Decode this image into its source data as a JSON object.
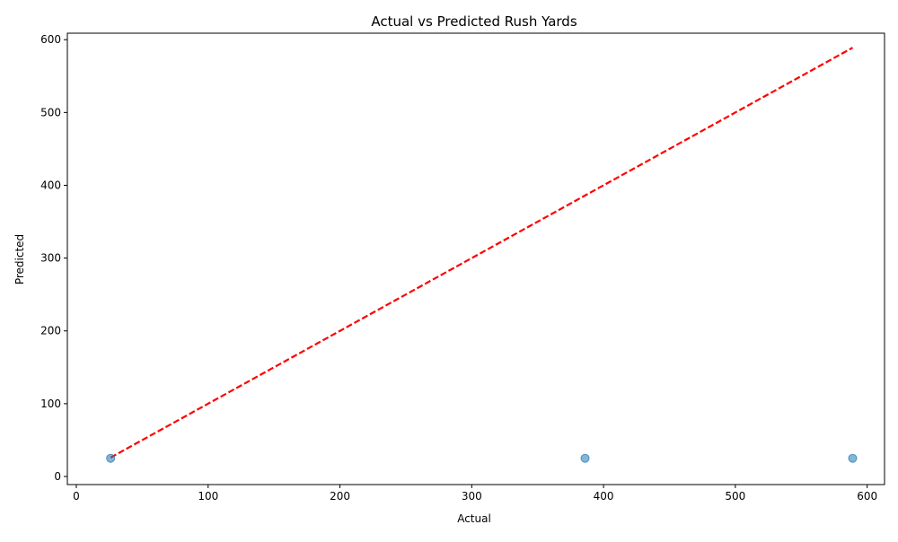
{
  "chart_data": {
    "type": "scatter",
    "title": "Actual vs Predicted Rush Yards",
    "xlabel": "Actual",
    "ylabel": "Predicted",
    "xlim": [
      0,
      620
    ],
    "ylim": [
      0,
      620
    ],
    "x_ticks": [
      0,
      100,
      200,
      300,
      400,
      500,
      600
    ],
    "y_ticks": [
      0,
      100,
      200,
      300,
      400,
      500,
      600
    ],
    "grid": false,
    "points": [
      {
        "x": 26,
        "y": 25
      },
      {
        "x": 386,
        "y": 25
      },
      {
        "x": 589,
        "y": 25
      }
    ],
    "reference_line": {
      "x": [
        26,
        589
      ],
      "y": [
        26,
        589
      ],
      "style": "dashed"
    },
    "colors": {
      "points": "#1f77b4",
      "reference_line": "#ff0000"
    }
  }
}
